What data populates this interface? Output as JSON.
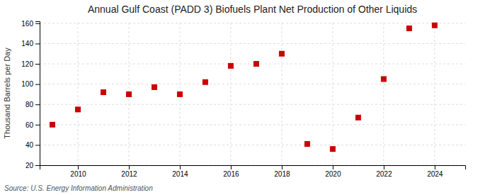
{
  "chart_data": {
    "type": "scatter",
    "title": "Annual Gulf Coast (PADD 3) Biofuels Plant Net Production of Other Liquids",
    "ylabel": "Thousand Barrels per Day",
    "source": "Source: U.S. Energy Information Administration",
    "x": [
      2009,
      2010,
      2011,
      2012,
      2013,
      2014,
      2015,
      2016,
      2017,
      2018,
      2019,
      2020,
      2021,
      2022,
      2023,
      2024
    ],
    "values": [
      60,
      75,
      92,
      90,
      97,
      90,
      102,
      118,
      120,
      130,
      41,
      36,
      67,
      105,
      155,
      158
    ],
    "color": "#cc0000",
    "marker": "square",
    "xlim": [
      2008.5,
      2025.2
    ],
    "xticks": [
      2010,
      2012,
      2014,
      2016,
      2018,
      2020,
      2022,
      2024
    ],
    "ylim": [
      20,
      162
    ],
    "yticks": [
      20,
      40,
      60,
      80,
      100,
      120,
      140,
      160
    ],
    "grid": true
  }
}
